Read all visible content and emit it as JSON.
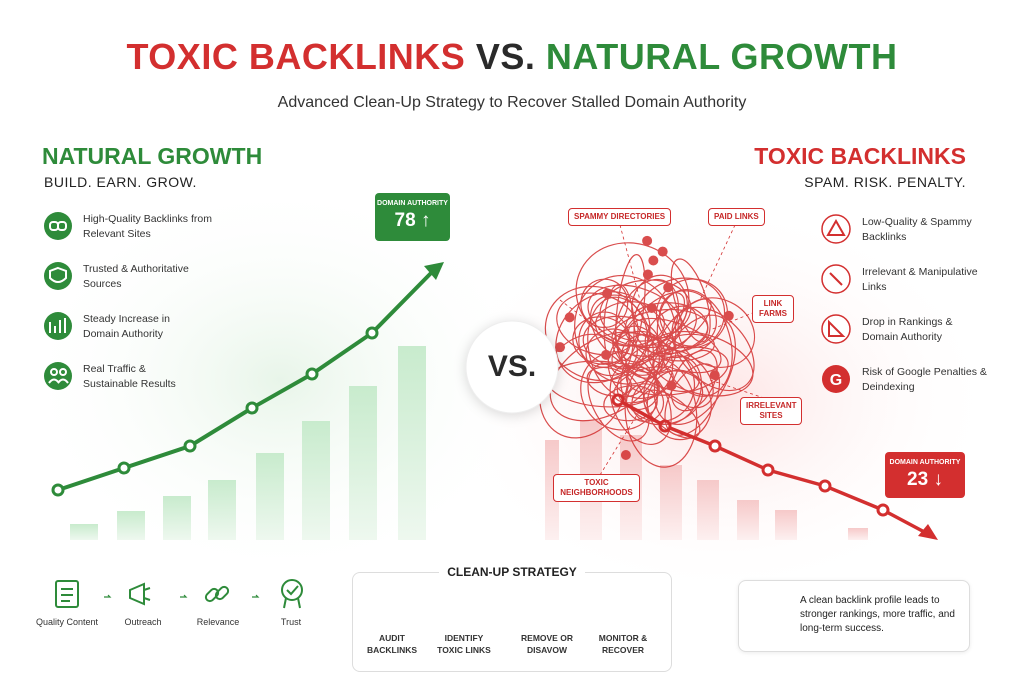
{
  "header": {
    "title_left": "TOXIC BACKLINKS",
    "title_mid": "VS.",
    "title_right": "NATURAL GROWTH",
    "subtitle": "Advanced Clean-Up Strategy to Recover Stalled Domain Authority"
  },
  "natural": {
    "title": "NATURAL GROWTH",
    "tagline": "BUILD. EARN. GROW.",
    "items": [
      "High-Quality Backlinks from Relevant Sites",
      "Trusted & Authoritative Sources",
      "Steady Increase in Domain Authority",
      "Real Traffic & Sustainable Results"
    ],
    "badge_label": "DOMAIN AUTHORITY",
    "badge_value": 78
  },
  "vs": "VS.",
  "toxic": {
    "title": "TOXIC BACKLINKS",
    "tagline": "SPAM. RISK. PENALTY.",
    "items": [
      "Low-Quality & Spammy Backlinks",
      "Irrelevant & Manipulative Links",
      "Drop in Rankings & Domain Authority",
      "Risk of Google Penalties & Deindexing"
    ],
    "tangle_labels": [
      "SPAMMY DIRECTORIES",
      "PAID LINKS",
      "LINK FARMS",
      "IRRELEVANT SITES",
      "TOXIC NEIGHBORHOODS"
    ],
    "badge_label": "DOMAIN AUTHORITY",
    "badge_value": 23
  },
  "flow": [
    "Quality Content",
    "Outreach",
    "Relevance",
    "Trust"
  ],
  "strategy": {
    "title": "CLEAN-UP STRATEGY",
    "steps": [
      "AUDIT BACKLINKS",
      "IDENTIFY TOXIC LINKS",
      "REMOVE OR DISAVOW",
      "MONITOR & RECOVER"
    ]
  },
  "note": "A clean backlink profile leads to stronger rankings, more traffic, and long-term success."
}
